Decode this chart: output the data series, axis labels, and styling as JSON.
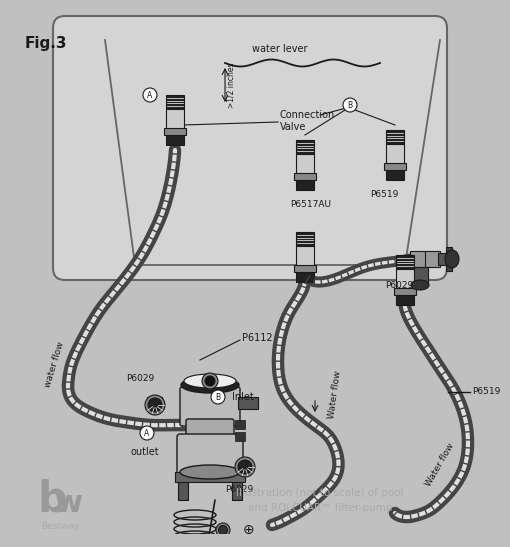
{
  "bg_color": "#c0c0c0",
  "pool_color": "#d4d4d4",
  "pool_border": "#666666",
  "line_color": "#1a1a1a",
  "title": "Fig.3",
  "footer_text1": "Illustration (not to scale) of pool",
  "footer_text2": "and ROLCUAR™ filter-pump",
  "labels": {
    "water_lever": "water lever",
    "connection_valve": "Connection\nValve",
    "p6517au": "P6517AU",
    "p6519_top": "P6519",
    "p6029_mid": "P6029",
    "p6112": "P6112",
    "inlet": "Inlet",
    "p6029_left": "P6029",
    "outlet": "outlet",
    "p6029_bot": "P6029",
    "p6519_right": "P6519",
    "water_flow_left": "water flow",
    "water_flow_mid": "Water flow",
    "water_flow_right": "Water flow",
    "bestway": "Bestway",
    "A_label": "A",
    "B_label": "B"
  },
  "hose_dark": "#444444",
  "hose_light": "#e0e0e0",
  "connector_dark": "#222222",
  "connector_mid": "#888888",
  "connector_light": "#cccccc",
  "pump_body_color": "#aaaaaa",
  "pump_dark": "#333333"
}
